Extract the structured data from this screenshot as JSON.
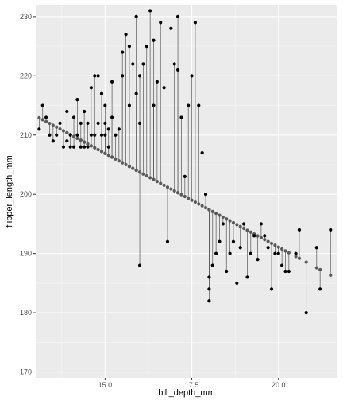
{
  "chart_data": {
    "type": "scatter",
    "title": "",
    "xlabel": "bill_depth_mm",
    "ylabel": "flipper_length_mm",
    "xlim": [
      13.0,
      21.7
    ],
    "ylim": [
      169.0,
      232.0
    ],
    "x_ticks": [
      15.0,
      17.5,
      20.0
    ],
    "x_tick_labels": [
      "15.0",
      "17.5",
      "20.0"
    ],
    "y_ticks": [
      170,
      180,
      190,
      200,
      210,
      220,
      230
    ],
    "y_tick_labels": [
      "170",
      "180",
      "190",
      "200",
      "210",
      "220",
      "230"
    ],
    "grid": true,
    "legend": "none",
    "regression_line": {
      "intercept": 254.4,
      "slope": -3.166
    },
    "series": [
      {
        "type": "points",
        "color": "#000000",
        "points": [
          [
            13.1,
            211
          ],
          [
            13.2,
            215
          ],
          [
            13.3,
            213
          ],
          [
            13.4,
            210
          ],
          [
            13.5,
            209
          ],
          [
            13.6,
            210
          ],
          [
            13.7,
            212
          ],
          [
            13.8,
            208
          ],
          [
            13.9,
            209
          ],
          [
            13.9,
            214
          ],
          [
            14.0,
            208
          ],
          [
            14.0,
            210
          ],
          [
            14.1,
            208
          ],
          [
            14.1,
            213
          ],
          [
            14.2,
            210
          ],
          [
            14.2,
            216
          ],
          [
            14.3,
            208
          ],
          [
            14.3,
            212
          ],
          [
            14.4,
            208
          ],
          [
            14.4,
            214
          ],
          [
            14.5,
            208
          ],
          [
            14.5,
            212
          ],
          [
            14.6,
            210
          ],
          [
            14.6,
            218
          ],
          [
            14.7,
            210
          ],
          [
            14.7,
            220
          ],
          [
            14.8,
            212
          ],
          [
            14.8,
            220
          ],
          [
            14.9,
            210
          ],
          [
            14.9,
            217
          ],
          [
            15.0,
            210
          ],
          [
            15.0,
            212
          ],
          [
            15.0,
            215
          ],
          [
            15.1,
            208
          ],
          [
            15.1,
            211
          ],
          [
            15.2,
            213
          ],
          [
            15.2,
            219
          ],
          [
            15.3,
            210
          ],
          [
            15.4,
            211
          ],
          [
            15.5,
            220
          ],
          [
            15.5,
            224
          ],
          [
            15.6,
            227
          ],
          [
            15.7,
            215
          ],
          [
            15.7,
            225
          ],
          [
            15.8,
            222
          ],
          [
            15.9,
            217
          ],
          [
            15.9,
            230
          ],
          [
            16.0,
            188
          ],
          [
            16.0,
            212
          ],
          [
            16.0,
            220
          ],
          [
            16.1,
            222
          ],
          [
            16.2,
            225
          ],
          [
            16.3,
            231
          ],
          [
            16.4,
            215
          ],
          [
            16.4,
            226
          ],
          [
            16.5,
            219
          ],
          [
            16.6,
            229
          ],
          [
            16.7,
            218
          ],
          [
            16.8,
            192
          ],
          [
            16.9,
            228
          ],
          [
            17.0,
            222
          ],
          [
            17.1,
            230
          ],
          [
            17.1,
            221
          ],
          [
            17.2,
            213
          ],
          [
            17.3,
            203
          ],
          [
            17.4,
            215
          ],
          [
            17.5,
            220
          ],
          [
            17.6,
            229
          ],
          [
            17.7,
            215
          ],
          [
            17.8,
            207
          ],
          [
            17.9,
            200
          ],
          [
            18.0,
            182
          ],
          [
            18.0,
            184
          ],
          [
            18.0,
            186
          ],
          [
            18.1,
            188
          ],
          [
            18.2,
            190
          ],
          [
            18.3,
            192
          ],
          [
            18.4,
            195
          ],
          [
            18.5,
            187
          ],
          [
            18.6,
            190
          ],
          [
            18.7,
            192
          ],
          [
            18.8,
            185
          ],
          [
            18.9,
            191
          ],
          [
            19.0,
            195
          ],
          [
            19.1,
            186
          ],
          [
            19.2,
            190
          ],
          [
            19.3,
            193
          ],
          [
            19.4,
            189
          ],
          [
            19.5,
            195
          ],
          [
            19.6,
            193
          ],
          [
            19.7,
            191
          ],
          [
            19.8,
            184
          ],
          [
            19.9,
            190
          ],
          [
            20.0,
            190
          ],
          [
            20.1,
            188
          ],
          [
            20.2,
            187
          ],
          [
            20.3,
            187
          ],
          [
            20.5,
            190
          ],
          [
            20.6,
            194
          ],
          [
            20.8,
            180
          ],
          [
            21.1,
            191
          ],
          [
            21.2,
            184
          ],
          [
            21.5,
            194
          ]
        ]
      }
    ]
  }
}
